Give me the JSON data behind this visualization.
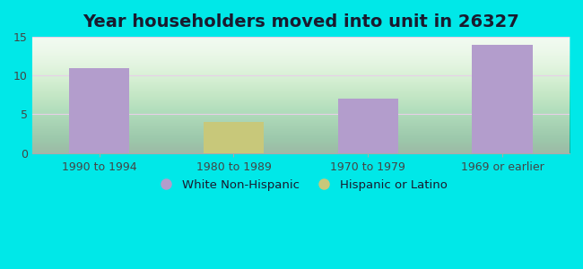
{
  "title": "Year householders moved into unit in 26327",
  "categories": [
    "1990 to 1994",
    "1980 to 1989",
    "1970 to 1979",
    "1969 or earlier"
  ],
  "white_values": [
    11,
    0,
    7,
    14
  ],
  "hispanic_values": [
    0,
    4,
    0,
    0
  ],
  "white_color": "#b39dcc",
  "hispanic_color": "#c8c87a",
  "ylim": [
    0,
    15
  ],
  "yticks": [
    0,
    5,
    10,
    15
  ],
  "bar_width": 0.45,
  "plot_bg_top": "#f0faf0",
  "plot_bg_bottom": "#c8eec8",
  "outer_background": "#00e8e8",
  "legend_white": "White Non-Hispanic",
  "legend_hispanic": "Hispanic or Latino",
  "title_fontsize": 14,
  "tick_fontsize": 9,
  "tick_color": "#444444",
  "title_color": "#1a1a2e"
}
